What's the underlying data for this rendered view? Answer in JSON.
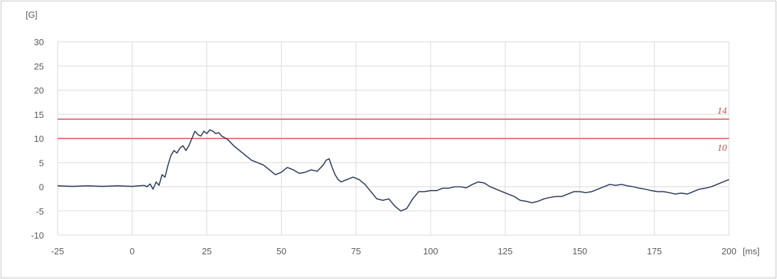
{
  "chart_data": {
    "type": "line",
    "title": "",
    "ylabel": "[G]",
    "xlabel": "[ms]",
    "xlim": [
      -25,
      200
    ],
    "ylim": [
      -10,
      30
    ],
    "x_ticks": [
      -25,
      0,
      25,
      50,
      75,
      100,
      125,
      150,
      175,
      200
    ],
    "y_ticks": [
      -10,
      -5,
      0,
      5,
      10,
      15,
      20,
      25,
      30
    ],
    "grid": true,
    "legend": "none",
    "colors": {
      "series": "#2e3e5c",
      "reference": "#e06666",
      "reference_label": "#c0504d",
      "grid": "#d9d9d9"
    },
    "reference_lines": [
      {
        "value": 14,
        "label": "14"
      },
      {
        "value": 10,
        "label": "10"
      }
    ],
    "series": [
      {
        "x": [
          -25,
          -20,
          -15,
          -10,
          -5,
          0,
          4,
          5,
          6,
          7,
          8,
          9,
          10,
          11,
          12,
          13,
          14,
          15,
          16,
          17,
          18,
          19,
          20,
          21,
          22,
          23,
          24,
          25,
          26,
          27,
          28,
          29,
          30,
          32,
          34,
          36,
          38,
          40,
          42,
          44,
          46,
          48,
          50,
          52,
          54,
          56,
          58,
          60,
          62,
          64,
          65,
          66,
          67,
          68,
          69,
          70,
          72,
          74,
          76,
          78,
          80,
          82,
          84,
          86,
          88,
          90,
          92,
          94,
          96,
          98,
          100,
          102,
          104,
          106,
          108,
          110,
          112,
          114,
          116,
          118,
          120,
          122,
          124,
          126,
          128,
          130,
          132,
          134,
          136,
          138,
          140,
          142,
          144,
          146,
          148,
          150,
          152,
          154,
          156,
          158,
          160,
          162,
          164,
          166,
          168,
          170,
          172,
          174,
          176,
          178,
          180,
          182,
          184,
          186,
          188,
          190,
          192,
          194,
          196,
          198,
          200
        ],
        "y": [
          0.2,
          0.1,
          0.2,
          0.1,
          0.2,
          0.1,
          0.3,
          0.0,
          0.6,
          -0.5,
          1.0,
          0.3,
          2.5,
          2.0,
          4.5,
          6.5,
          7.5,
          7.0,
          8.0,
          8.5,
          7.5,
          8.5,
          10.0,
          11.5,
          10.8,
          10.5,
          11.5,
          11.0,
          11.8,
          11.5,
          11.0,
          11.2,
          10.5,
          9.8,
          8.5,
          7.5,
          6.5,
          5.5,
          5.0,
          4.5,
          3.5,
          2.5,
          3.0,
          4.0,
          3.5,
          2.8,
          3.0,
          3.5,
          3.2,
          4.5,
          5.5,
          5.8,
          4.0,
          2.5,
          1.5,
          1.0,
          1.5,
          2.0,
          1.5,
          0.5,
          -1.0,
          -2.5,
          -2.8,
          -2.5,
          -4.0,
          -5.0,
          -4.5,
          -2.5,
          -1.0,
          -1.0,
          -0.8,
          -0.8,
          -0.3,
          -0.3,
          0.0,
          0.0,
          -0.2,
          0.5,
          1.0,
          0.8,
          0.0,
          -0.5,
          -1.0,
          -1.5,
          -2.0,
          -2.8,
          -3.0,
          -3.3,
          -3.0,
          -2.5,
          -2.2,
          -2.0,
          -2.0,
          -1.5,
          -1.0,
          -1.0,
          -1.2,
          -1.0,
          -0.5,
          0.0,
          0.5,
          0.3,
          0.5,
          0.2,
          0.0,
          -0.3,
          -0.5,
          -0.8,
          -1.0,
          -1.0,
          -1.2,
          -1.5,
          -1.3,
          -1.5,
          -1.0,
          -0.5,
          -0.3,
          0.0,
          0.5,
          1.0,
          1.5
        ]
      }
    ]
  }
}
